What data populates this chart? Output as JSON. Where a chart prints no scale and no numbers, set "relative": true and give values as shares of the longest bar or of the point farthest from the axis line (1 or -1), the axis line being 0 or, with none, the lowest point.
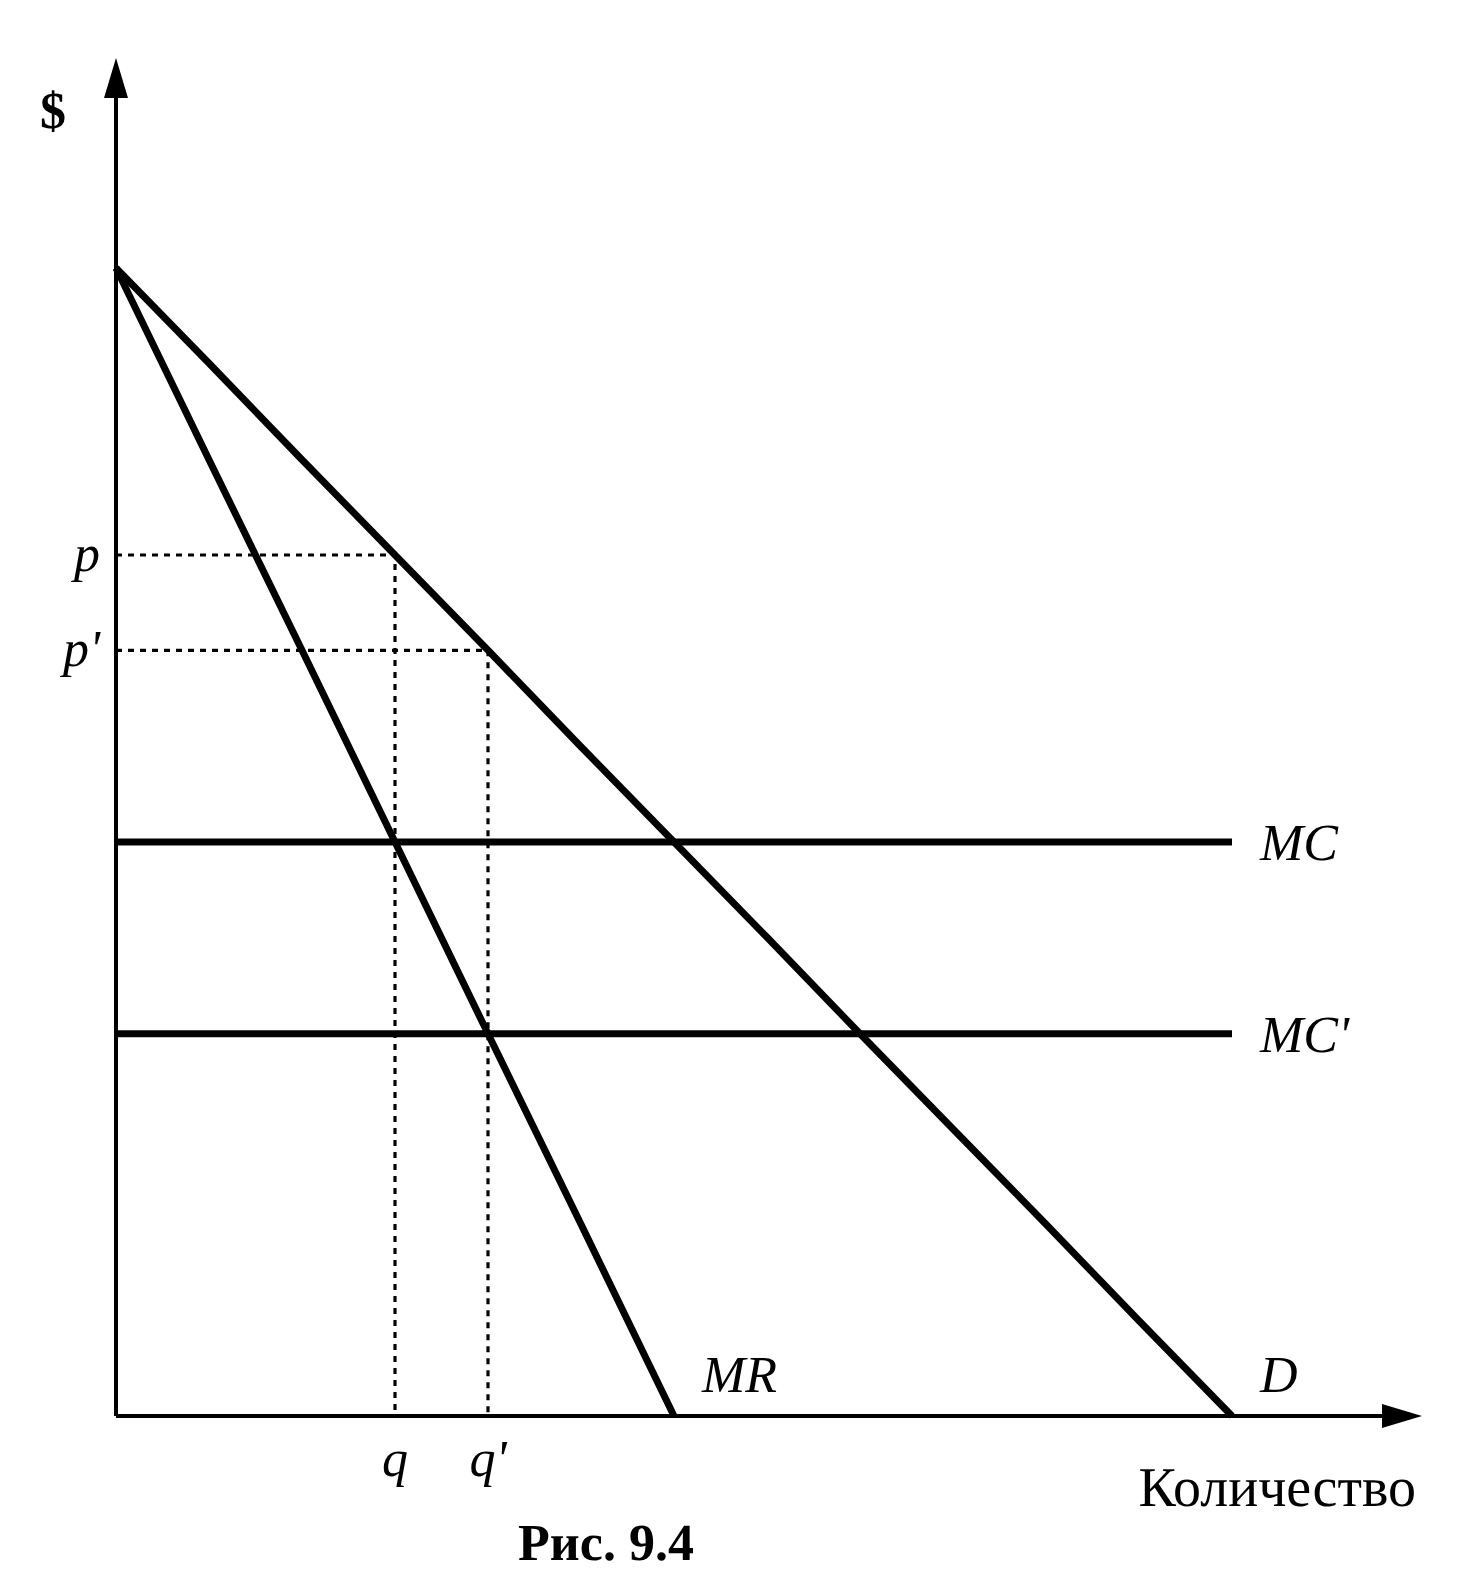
{
  "chart_data": {
    "type": "line",
    "relative": true,
    "ylabel": "$",
    "xlabel": "Количество",
    "categories": [
      null,
      null,
      null,
      "q",
      "q'",
      null,
      null,
      null,
      null,
      null,
      null,
      null,
      null
    ],
    "series": [
      {
        "name": "D",
        "color": "#000000",
        "values": [
          1,
          0.917,
          0.833,
          0.75,
          0.667,
          0.583,
          0.5,
          0.417,
          0.333,
          0.25,
          0.167,
          0.083,
          0
        ]
      },
      {
        "name": "MR",
        "color": "#000000",
        "values": [
          1,
          0.833,
          0.667,
          0.5,
          0.333,
          0.167,
          0,
          null,
          null,
          null,
          null,
          null,
          null
        ]
      },
      {
        "name": "MC",
        "color": "#000000",
        "values": [
          0.5,
          0.5,
          0.5,
          0.5,
          0.5,
          0.5,
          0.5,
          0.5,
          0.5,
          0.5,
          0.5,
          0.5,
          0.5
        ]
      },
      {
        "name": "MC'",
        "color": "#000000",
        "values": [
          0.333,
          0.333,
          0.333,
          0.333,
          0.333,
          0.333,
          0.333,
          0.333,
          0.333,
          0.333,
          0.333,
          0.333,
          0.333
        ]
      }
    ],
    "ref_lines": [
      {
        "axis": "y",
        "value": 0.75,
        "label": "p",
        "line_style": "dotted"
      },
      {
        "axis": "y",
        "value": 0.667,
        "label": "p'",
        "line_style": "dotted"
      }
    ],
    "annotations": [
      "Рис. 9.4"
    ]
  }
}
